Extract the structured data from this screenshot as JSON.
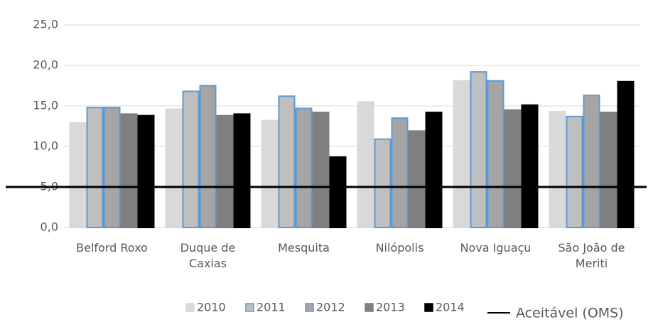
{
  "chart_data": {
    "type": "bar",
    "categories": [
      "Belford Roxo",
      "Duque de Caxias",
      "Mesquita",
      "Nilópolis",
      "Nova Iguaçu",
      "São João de Meriti"
    ],
    "series": [
      {
        "name": "2010",
        "color": "#d9d9d9",
        "edge_color": "#d9d9d9",
        "values": [
          12.9,
          14.6,
          13.2,
          15.5,
          18.1,
          14.3
        ]
      },
      {
        "name": "2011",
        "color": "#bfbfbf",
        "edge_color": "#5b9bd5",
        "values": [
          14.8,
          16.8,
          16.2,
          10.9,
          19.2,
          13.7
        ]
      },
      {
        "name": "2012",
        "color": "#a5a5a5",
        "edge_color": "#5b9bd5",
        "values": [
          14.8,
          17.5,
          14.7,
          13.5,
          18.1,
          16.3
        ]
      },
      {
        "name": "2013",
        "color": "#7f7f7f",
        "edge_color": "#7f7f7f",
        "values": [
          14.0,
          13.8,
          14.2,
          11.9,
          14.5,
          14.2
        ]
      },
      {
        "name": "2014",
        "color": "#000000",
        "edge_color": "#000000",
        "values": [
          13.8,
          14.0,
          8.7,
          14.2,
          15.1,
          18.0
        ]
      }
    ],
    "reference_line": {
      "value": 5,
      "label": "Aceitável (OMS)",
      "color": "#000000"
    },
    "ylim": [
      0,
      25
    ],
    "yticks": [
      {
        "value": 0,
        "label": "0,0"
      },
      {
        "value": 5,
        "label": "5,0"
      },
      {
        "value": 10,
        "label": "10,0"
      },
      {
        "value": 15,
        "label": "15,0"
      },
      {
        "value": 20,
        "label": "20,0"
      },
      {
        "value": 25,
        "label": "25,0"
      }
    ],
    "grid": true,
    "legend": "bottom"
  }
}
